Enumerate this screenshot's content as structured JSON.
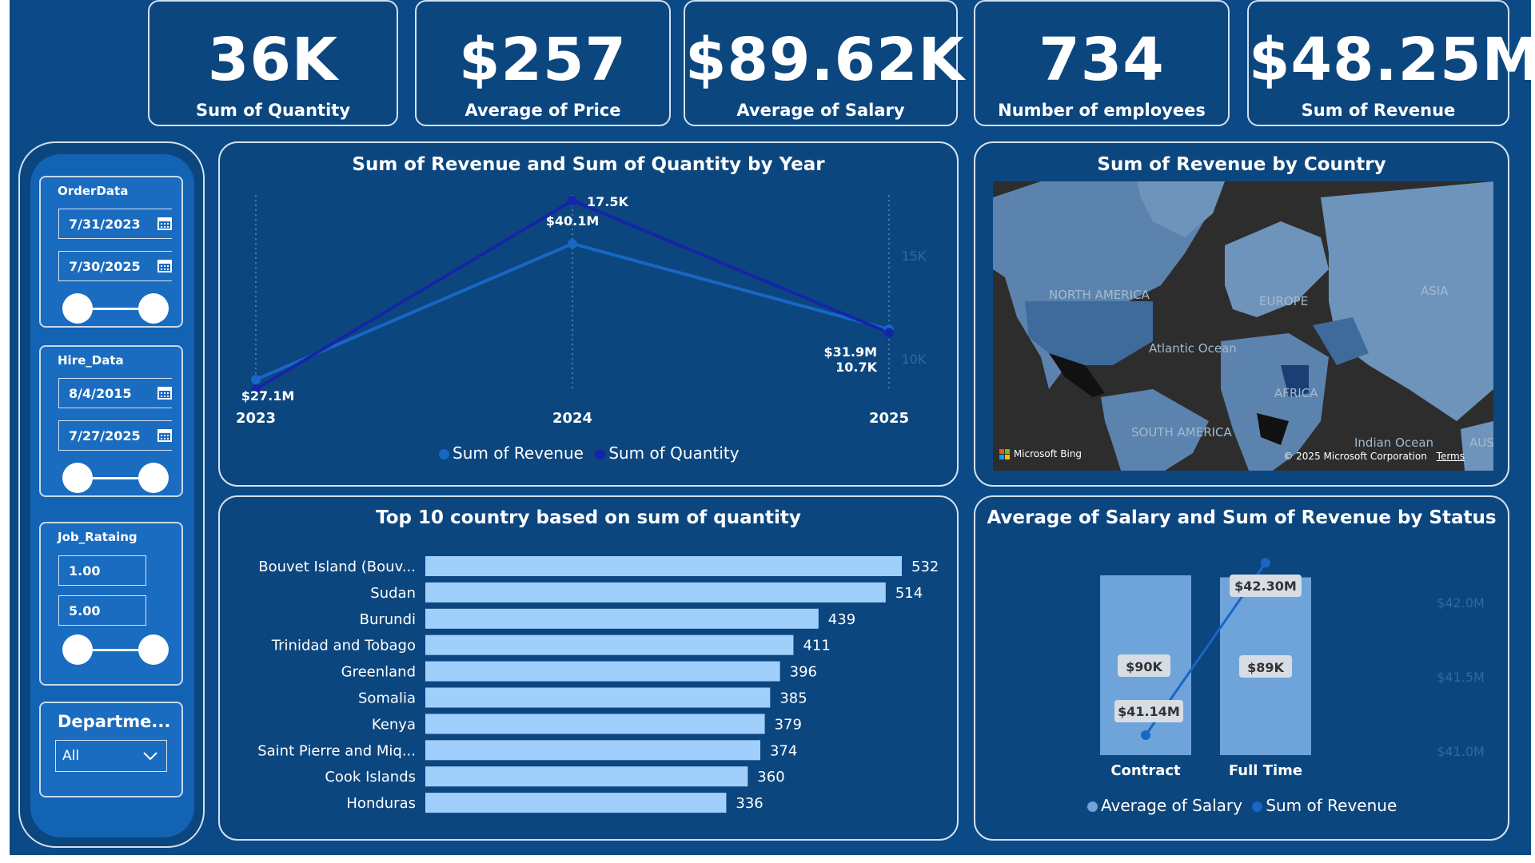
{
  "kpis": [
    {
      "value": "36K",
      "label": "Sum of Quantity"
    },
    {
      "value": "$257",
      "label": "Average of Price"
    },
    {
      "value": "$89.62K",
      "label": "Average of Salary"
    },
    {
      "value": "734",
      "label": "Number of employees"
    },
    {
      "value": "$48.25M",
      "label": "Sum of Revenue"
    }
  ],
  "slicers": {
    "order": {
      "title": "OrderData",
      "start": "7/31/2023",
      "end": "7/30/2025"
    },
    "hire": {
      "title": "Hire_Data",
      "start": "8/4/2015",
      "end": "7/27/2025"
    },
    "rating": {
      "title": "Job_Rataing",
      "min": "1.00",
      "max": "5.00"
    },
    "department": {
      "title": "Departme...",
      "value": "All"
    }
  },
  "colors": {
    "revenue": "#1767c4",
    "quantity": "#1525a8",
    "bar": "#a0cffc",
    "status_bar": "#6fa4db"
  },
  "line_chart": {
    "title": "Sum of Revenue and Sum of Quantity by Year",
    "legend": [
      "Sum of Revenue",
      "Sum of Quantity"
    ],
    "right_ticks": [
      "15K",
      "10K"
    ]
  },
  "map": {
    "title": "Sum of Revenue by Country",
    "labels": {
      "north_america": "NORTH AMERICA",
      "europe": "EUROPE",
      "asia": "ASIA",
      "africa": "AFRICA",
      "atlantic": "Atlantic Ocean",
      "south_america": "SOUTH AMERICA",
      "indian": "Indian Ocean",
      "aust": "AUST"
    },
    "brand": "Microsoft Bing",
    "copyright": "© 2025 Microsoft Corporation",
    "terms": "Terms"
  },
  "bar_chart": {
    "title": "Top 10 country based on sum of quantity"
  },
  "status_chart": {
    "title": "Average of Salary and Sum of Revenue by Status",
    "legend": [
      "Average of Salary",
      "Sum of Revenue"
    ],
    "right_ticks": [
      "$42.0M",
      "$41.5M",
      "$41.0M"
    ]
  },
  "chart_data": [
    {
      "type": "line",
      "title": "Sum of Revenue and Sum of Quantity by Year",
      "x": [
        "2023",
        "2024",
        "2025"
      ],
      "series": [
        {
          "name": "Sum of Revenue",
          "values": [
            27.1,
            40.1,
            31.9
          ],
          "labels": [
            "$27.1M",
            "$40.1M",
            "$31.9M"
          ],
          "unit": "$M"
        },
        {
          "name": "Sum of Quantity",
          "values": [
            7.8,
            17.5,
            10.7
          ],
          "labels": [
            "",
            "17.5K",
            "10.7K"
          ],
          "unit": "K"
        }
      ],
      "y_right_ticks": [
        "15K",
        "10K"
      ]
    },
    {
      "type": "bar",
      "title": "Top 10 country based on sum of quantity",
      "categories": [
        "Bouvet Island (Bouv...",
        "Sudan",
        "Burundi",
        "Trinidad and Tobago",
        "Greenland",
        "Somalia",
        "Kenya",
        "Saint Pierre and Miq...",
        "Cook Islands",
        "Honduras"
      ],
      "values": [
        532,
        514,
        439,
        411,
        396,
        385,
        379,
        374,
        360,
        336
      ]
    },
    {
      "type": "bar",
      "title": "Average of Salary and Sum of Revenue by Status",
      "categories": [
        "Contract",
        "Full Time"
      ],
      "series": [
        {
          "name": "Average of Salary",
          "values": [
            90,
            89
          ],
          "labels": [
            "$90K",
            "$89K"
          ]
        },
        {
          "name": "Sum of Revenue",
          "values": [
            41.14,
            42.3
          ],
          "labels": [
            "$41.14M",
            "$42.30M"
          ],
          "ylim": [
            40.8,
            42.4
          ]
        }
      ],
      "y_right_ticks": [
        "$42.0M",
        "$41.5M",
        "$41.0M"
      ]
    }
  ]
}
